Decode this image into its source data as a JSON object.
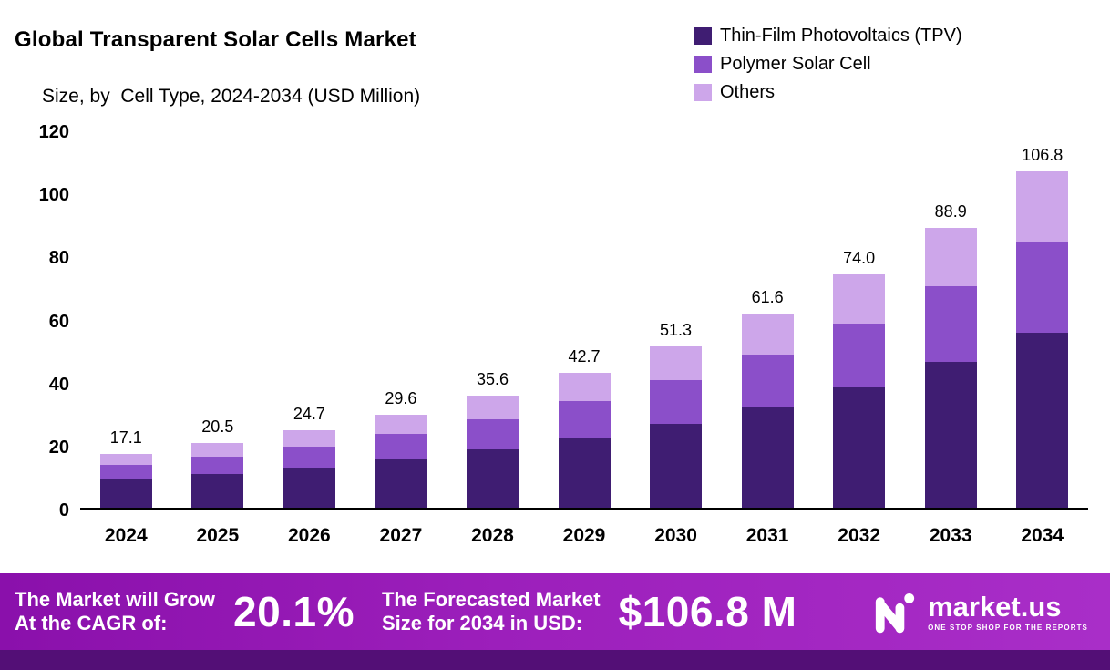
{
  "header": {
    "title": "Global Transparent Solar Cells Market",
    "subtitle": "Size, by  Cell Type, 2024-2034 (USD Million)"
  },
  "chart_data": {
    "type": "bar",
    "stacked": true,
    "title": "Global Transparent Solar Cells Market Size, by Cell Type, 2024-2034 (USD Million)",
    "categories": [
      "2024",
      "2025",
      "2026",
      "2027",
      "2028",
      "2029",
      "2030",
      "2031",
      "2032",
      "2033",
      "2034"
    ],
    "series": [
      {
        "name": "Thin-Film Photovoltaics (TPV)",
        "color": "#3f1d72",
        "values": [
          8.9,
          10.7,
          12.8,
          15.4,
          18.5,
          22.2,
          26.7,
          32.0,
          38.5,
          46.2,
          55.5
        ]
      },
      {
        "name": "Polymer Solar Cell",
        "color": "#8b4fc9",
        "values": [
          4.6,
          5.5,
          6.7,
          8.0,
          9.6,
          11.5,
          13.9,
          16.6,
          20.0,
          24.0,
          28.8
        ]
      },
      {
        "name": "Others",
        "color": "#cda6ea",
        "values": [
          3.6,
          4.3,
          5.2,
          6.2,
          7.5,
          9.0,
          10.7,
          13.0,
          15.5,
          18.7,
          22.5
        ]
      }
    ],
    "totals": [
      17.1,
      20.5,
      24.7,
      29.6,
      35.6,
      42.7,
      51.3,
      61.6,
      74.0,
      88.9,
      106.8
    ],
    "total_labels": [
      "17.1",
      "20.5",
      "24.7",
      "29.6",
      "35.6",
      "42.7",
      "51.3",
      "61.6",
      "74.0",
      "88.9",
      "106.8"
    ],
    "ylim": [
      0,
      120
    ],
    "y_ticks": [
      120,
      100,
      80,
      60,
      40,
      20,
      0
    ],
    "grid": false,
    "legend_position": "top-right",
    "data_labels": "totals above bars"
  },
  "footer": {
    "cagr_label_line1": "The Market will Grow",
    "cagr_label_line2": "At the CAGR of:",
    "cagr_value": "20.1%",
    "forecast_label_line1": "The Forecasted Market",
    "forecast_label_line2": "Size for 2034 in USD:",
    "forecast_value": "$106.8 M",
    "brand_name": "market.us",
    "brand_tagline": "ONE STOP SHOP FOR THE REPORTS"
  },
  "colors": {
    "tpv": "#3f1d72",
    "polymer": "#8b4fc9",
    "others": "#cda6ea",
    "banner_gradient_start": "#8a10ab",
    "banner_gradient_end": "#a92ec8",
    "banner_bottom_strip": "#530f76",
    "axis": "#000000"
  }
}
